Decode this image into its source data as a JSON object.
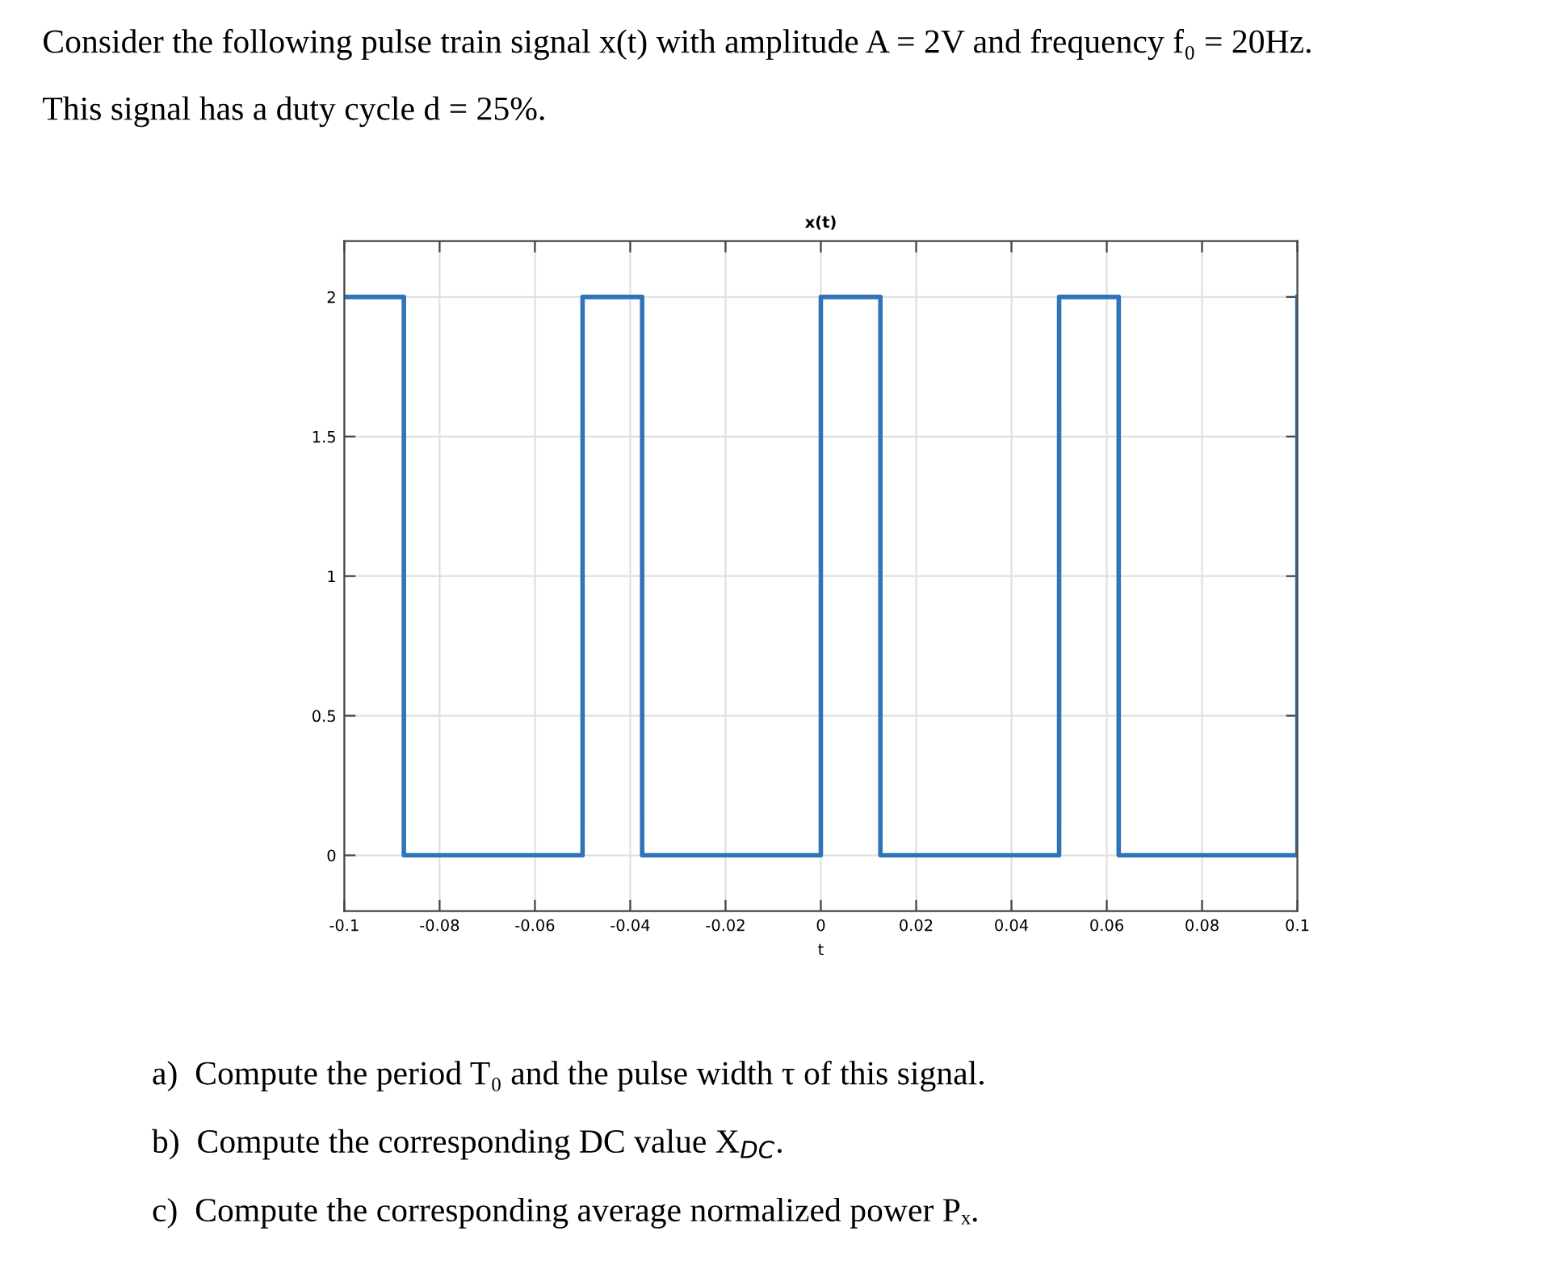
{
  "chart_data": {
    "type": "step",
    "title": "x(t)",
    "xlabel": "t",
    "x": [
      -0.1,
      -0.0875,
      -0.05,
      -0.0375,
      0,
      0.0125,
      0.05,
      0.0625,
      0.1
    ],
    "series": [
      {
        "color": "#2f73b8",
        "values": [
          2,
          0,
          2,
          0,
          2,
          0,
          2,
          0,
          2
        ]
      }
    ],
    "xlim": [
      -0.1,
      0.1
    ],
    "xticks": [
      -0.1,
      -0.08,
      -0.06,
      -0.04,
      -0.02,
      0,
      0.02,
      0.04,
      0.06,
      0.08,
      0.1
    ],
    "ylim": [
      -0.2,
      2.2
    ],
    "yticks": [
      0,
      0.5,
      1,
      1.5,
      2
    ],
    "grid": true,
    "line_style": "solid",
    "marker": "none",
    "annotations": [
      "Consider the following pulse train signal x(t) with amplitude A = 2V and frequency f₀ = 20Hz.",
      "This signal has a duty cycle d = 25%.",
      "a)  Compute the period T₀ and the pulse width τ of this signal.",
      "b)  Compute the corresponding DC value X$_{DC}$.",
      "c)  Compute the corresponding average normalized power Pₓ."
    ]
  }
}
